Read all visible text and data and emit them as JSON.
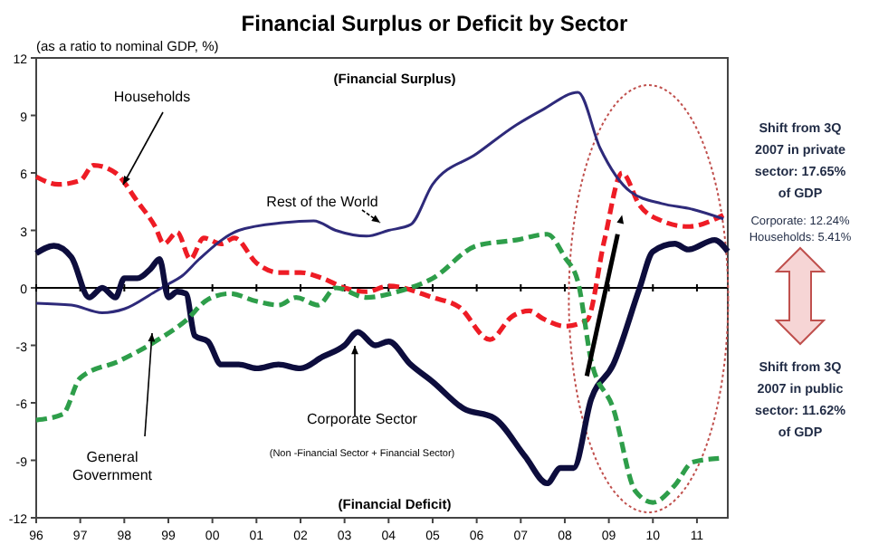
{
  "chart_data": {
    "type": "line",
    "title": "Financial Surplus or Deficit by Sector",
    "subtitle": "(as a ratio to nominal GDP, %)",
    "xlim": [
      1996,
      2011.7
    ],
    "xticks": [
      {
        "value": 1996,
        "label": "96"
      },
      {
        "value": 1997,
        "label": "97"
      },
      {
        "value": 1998,
        "label": "98"
      },
      {
        "value": 1999,
        "label": "99"
      },
      {
        "value": 2000,
        "label": "00"
      },
      {
        "value": 2001,
        "label": "01"
      },
      {
        "value": 2002,
        "label": "02"
      },
      {
        "value": 2003,
        "label": "03"
      },
      {
        "value": 2004,
        "label": "04"
      },
      {
        "value": 2005,
        "label": "05"
      },
      {
        "value": 2006,
        "label": "06"
      },
      {
        "value": 2007,
        "label": "07"
      },
      {
        "value": 2008,
        "label": "08"
      },
      {
        "value": 2009,
        "label": "09"
      },
      {
        "value": 2010,
        "label": "10"
      },
      {
        "value": 2011,
        "label": "11"
      }
    ],
    "ylim": [
      -12,
      12
    ],
    "yticks": [
      -12,
      -9,
      -6,
      -3,
      0,
      3,
      6,
      9,
      12
    ],
    "grid": false,
    "ref_lines": [
      {
        "axis": "y",
        "value": 0,
        "color": "#000000"
      }
    ],
    "series": [
      {
        "name": "Households",
        "color": "#ee1c25",
        "line_style": "dashed",
        "x": [
          1996,
          1996.5,
          1997,
          1997.3,
          1997.8,
          1998.3,
          1998.7,
          1998.9,
          1999.2,
          1999.5,
          1999.8,
          2000.2,
          2000.5,
          2001,
          2001.5,
          2002,
          2002.5,
          2003,
          2003.5,
          2004,
          2005,
          2005.6,
          2006.3,
          2006.8,
          2007.2,
          2007.5,
          2008,
          2008.5,
          2008.9,
          2009.3,
          2009.7,
          2010.2,
          2010.8,
          2011.6
        ],
        "values": [
          5.8,
          5.4,
          5.6,
          6.4,
          6.0,
          4.5,
          3.2,
          2.3,
          2.9,
          1.5,
          2.6,
          2.3,
          2.6,
          1.3,
          0.8,
          0.8,
          0.5,
          0,
          -0.2,
          0.1,
          -0.5,
          -1.0,
          -2.7,
          -1.5,
          -1.2,
          -1.6,
          -2.0,
          -1.7,
          2.5,
          6.0,
          4.3,
          3.5,
          3.2,
          3.8
        ]
      },
      {
        "name": "Rest of the World",
        "color": "#2e2a7a",
        "line_style": "solid",
        "x": [
          1996,
          1996.8,
          1997.5,
          1998,
          1998.7,
          1999,
          1999.3,
          1999.7,
          2000.6,
          2001.6,
          2002.3,
          2002.8,
          2003.5,
          2004,
          2004.5,
          2005,
          2006,
          2006.9,
          2007.5,
          2008.3,
          2008.8,
          2009.5,
          2010.2,
          2010.9,
          2011.6
        ],
        "values": [
          -0.8,
          -0.9,
          -1.3,
          -1.1,
          -0.2,
          0.2,
          0.6,
          1.5,
          3.0,
          3.4,
          3.5,
          3.0,
          2.7,
          3.0,
          3.3,
          5.4,
          7.0,
          8.5,
          9.3,
          10.2,
          7.3,
          5.0,
          4.4,
          4.1,
          3.6
        ]
      },
      {
        "name": "Corporate Sector",
        "color": "#0d0d3d",
        "line_style": "solid",
        "x": [
          1996,
          1996.4,
          1996.8,
          1997.2,
          1997.5,
          1997.8,
          1998,
          1998.3,
          1998.6,
          1998.8,
          1999,
          1999.2,
          1999.4,
          1999.6,
          1999.9,
          2000.2,
          2000.6,
          2001,
          2001.5,
          2002,
          2002.5,
          2003,
          2003.3,
          2003.7,
          2004,
          2004.5,
          2005,
          2005.7,
          2006.4,
          2007.1,
          2007.6,
          2007.9,
          2008.2,
          2008.6,
          2009.1,
          2009.7,
          2010,
          2010.5,
          2010.8,
          2011.4,
          2011.7
        ],
        "values": [
          1.8,
          2.2,
          1.6,
          -0.5,
          0,
          -0.5,
          0.5,
          0.5,
          1.0,
          1.5,
          -0.5,
          -0.2,
          -0.3,
          -2.5,
          -2.8,
          -4.0,
          -4.0,
          -4.2,
          -4.0,
          -4.2,
          -3.6,
          -3.0,
          -2.3,
          -3.0,
          -2.8,
          -4.0,
          -4.9,
          -6.3,
          -6.8,
          -8.8,
          -10.2,
          -9.4,
          -9.4,
          -5.8,
          -4.0,
          0,
          1.9,
          2.3,
          2.0,
          2.5,
          1.9
        ]
      },
      {
        "name": "General Government",
        "color": "#2e9e4a",
        "line_style": "dashed",
        "x": [
          1996,
          1996.6,
          1997,
          1997.9,
          1998.7,
          1999.4,
          1999.9,
          2000.4,
          2001,
          2001.5,
          2001.9,
          2002.4,
          2002.8,
          2003.5,
          2004.2,
          2005,
          2006,
          2006.9,
          2007.6,
          2008,
          2008.3,
          2008.6,
          2009.1,
          2009.6,
          2010,
          2010.5,
          2010.9,
          2011.5
        ],
        "values": [
          -6.9,
          -6.6,
          -4.7,
          -3.8,
          -2.8,
          -1.7,
          -0.6,
          -0.3,
          -0.7,
          -0.9,
          -0.5,
          -0.9,
          0,
          -0.5,
          -0.2,
          0.5,
          2.2,
          2.5,
          2.8,
          1.6,
          0.3,
          -3.8,
          -6.3,
          -10.6,
          -11.2,
          -10.3,
          -9.1,
          -8.9
        ]
      }
    ],
    "annotations": [
      "(Financial Surplus)",
      "(Financial Deficit)",
      "(Non -Financial Sector + Financial Sector)",
      "Shift from 3Q 2007 in private sector: 17.65% of GDP",
      "Corporate: 12.24%",
      "Households: 5.41%",
      "Shift from 3Q 2007 in public sector: 11.62% of GDP"
    ]
  }
}
